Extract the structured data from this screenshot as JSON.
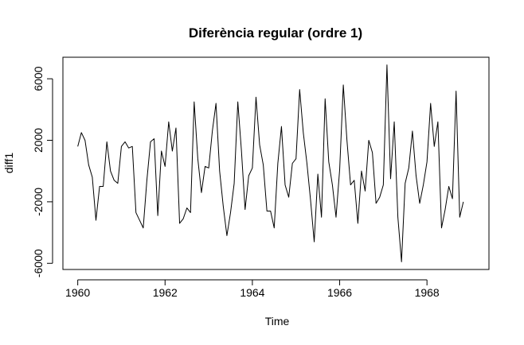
{
  "chart_data": {
    "type": "line",
    "title": "Diferència regular (ordre 1)",
    "xlabel": "Time",
    "ylabel": "diff1",
    "xlim": [
      1959.66,
      1969.42
    ],
    "ylim": [
      -6400,
      7400
    ],
    "x_ticks": [
      1960,
      1962,
      1964,
      1966,
      1968
    ],
    "y_ticks": [
      -6000,
      -2000,
      2000,
      6000
    ],
    "x_tick_labels": [
      "1960",
      "1962",
      "1964",
      "1966",
      "1968"
    ],
    "y_tick_labels": [
      "-6000",
      "-2000",
      "2000",
      "6000"
    ],
    "grid": false,
    "series": [
      {
        "start": 1960.0,
        "frequency": 12,
        "values": [
          1600,
          2500,
          2000,
          400,
          -400,
          -3200,
          -1000,
          -1000,
          1900,
          0,
          -600,
          -800,
          1600,
          1900,
          1500,
          1600,
          -2700,
          -3200,
          -3700,
          -600,
          1900,
          2100,
          -2900,
          1300,
          300,
          3200,
          1300,
          2800,
          -3400,
          -3100,
          -2400,
          -2700,
          4500,
          800,
          -1400,
          300,
          200,
          2600,
          4400,
          0,
          -2300,
          -4200,
          -2700,
          -800,
          4500,
          1300,
          -2500,
          -300,
          200,
          4800,
          1700,
          400,
          -2600,
          -2600,
          -3700,
          500,
          2900,
          -900,
          -1700,
          500,
          800,
          5300,
          2500,
          500,
          -1900,
          -4600,
          -200,
          -3000,
          4700,
          600,
          -900,
          -3000,
          100,
          5600,
          2000,
          -900,
          -600,
          -3400,
          0,
          -1300,
          2000,
          1200,
          -2100,
          -1700,
          -900,
          6900,
          -500,
          3200,
          -3000,
          -5900,
          -800,
          200,
          2600,
          -300,
          -2100,
          -900,
          600,
          4400,
          1600,
          3200,
          -3700,
          -2500,
          -1000,
          -1800,
          5200,
          -3000,
          -2000
        ]
      }
    ]
  }
}
